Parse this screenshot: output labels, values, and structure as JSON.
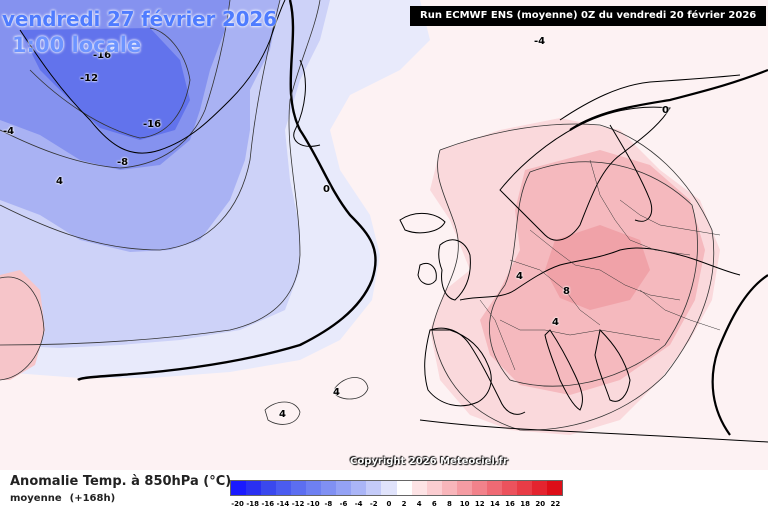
{
  "map": {
    "title_date": "vendredi 27 février 2026",
    "title_time": "1:00 locale",
    "run_info": "Run ECMWF ENS (moyenne) 0Z du vendredi 20 février 2026",
    "copyright": "Copyright 2026 Meteociel.fr",
    "contour_labels": [
      "-16",
      "-12",
      "-16",
      "-8",
      "-4",
      "-4",
      "4",
      "0",
      "0",
      "4",
      "8",
      "4",
      "4",
      "4"
    ],
    "colors": {
      "deep_blue": "#5566ee",
      "mid_blue": "#8a96f0",
      "light_blue": "#c4cbf7",
      "pale_blue": "#e6e8fb",
      "pale_pink": "#fdeaec",
      "light_pink": "#f8c9cd",
      "mid_pink": "#f3a9ae",
      "coast": "#000000"
    }
  },
  "legend": {
    "title": "Anomalie Temp. à 850hPa (°C)",
    "subtitle_mean": "moyenne",
    "subtitle_lead": "(+168h)",
    "ticks": [
      "-20",
      "-18",
      "-16",
      "-14",
      "-12",
      "-10",
      "-8",
      "-6",
      "-4",
      "-2",
      "0",
      "2",
      "4",
      "6",
      "8",
      "10",
      "12",
      "14",
      "16",
      "18",
      "20",
      "22"
    ],
    "colors": [
      "#1a1aff",
      "#2a30f2",
      "#3a48ee",
      "#4b5cf0",
      "#5c6ef1",
      "#6e80f2",
      "#8090f3",
      "#94a2f5",
      "#aab5f7",
      "#c4cbf9",
      "#e0e3fb",
      "#ffffff",
      "#fde3e5",
      "#fbcdd1",
      "#f8b5ba",
      "#f59ca3",
      "#f2828b",
      "#ef6a74",
      "#ec525d",
      "#e83c46",
      "#e4242f",
      "#dd0e18"
    ]
  }
}
